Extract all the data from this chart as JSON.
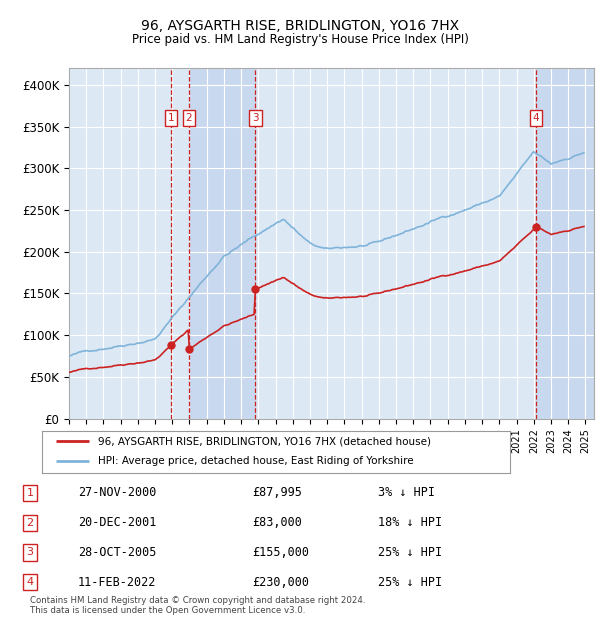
{
  "title1": "96, AYSGARTH RISE, BRIDLINGTON, YO16 7HX",
  "title2": "Price paid vs. HM Land Registry's House Price Index (HPI)",
  "ylabel_ticks": [
    "£0",
    "£50K",
    "£100K",
    "£150K",
    "£200K",
    "£250K",
    "£300K",
    "£350K",
    "£400K"
  ],
  "ylim": [
    0,
    420000
  ],
  "xlim_start": 1995.0,
  "xlim_end": 2025.5,
  "background_color": "#dce9f5",
  "grid_color": "#ffffff",
  "legend_label_red": "96, AYSGARTH RISE, BRIDLINGTON, YO16 7HX (detached house)",
  "legend_label_blue": "HPI: Average price, detached house, East Riding of Yorkshire",
  "transactions": [
    {
      "num": 1,
      "date": "27-NOV-2000",
      "price": "£87,995",
      "pct": "3%",
      "year": 2000.92
    },
    {
      "num": 2,
      "date": "20-DEC-2001",
      "price": "£83,000",
      "pct": "18%",
      "year": 2001.97
    },
    {
      "num": 3,
      "date": "28-OCT-2005",
      "price": "£155,000",
      "pct": "25%",
      "year": 2005.83
    },
    {
      "num": 4,
      "date": "11-FEB-2022",
      "price": "£230,000",
      "pct": "25%",
      "year": 2022.12
    }
  ],
  "footer": "Contains HM Land Registry data © Crown copyright and database right 2024.\nThis data is licensed under the Open Government Licence v3.0.",
  "shade_regions": [
    {
      "x_start": 2001.97,
      "x_end": 2005.83
    },
    {
      "x_start": 2022.12,
      "x_end": 2025.5
    }
  ]
}
